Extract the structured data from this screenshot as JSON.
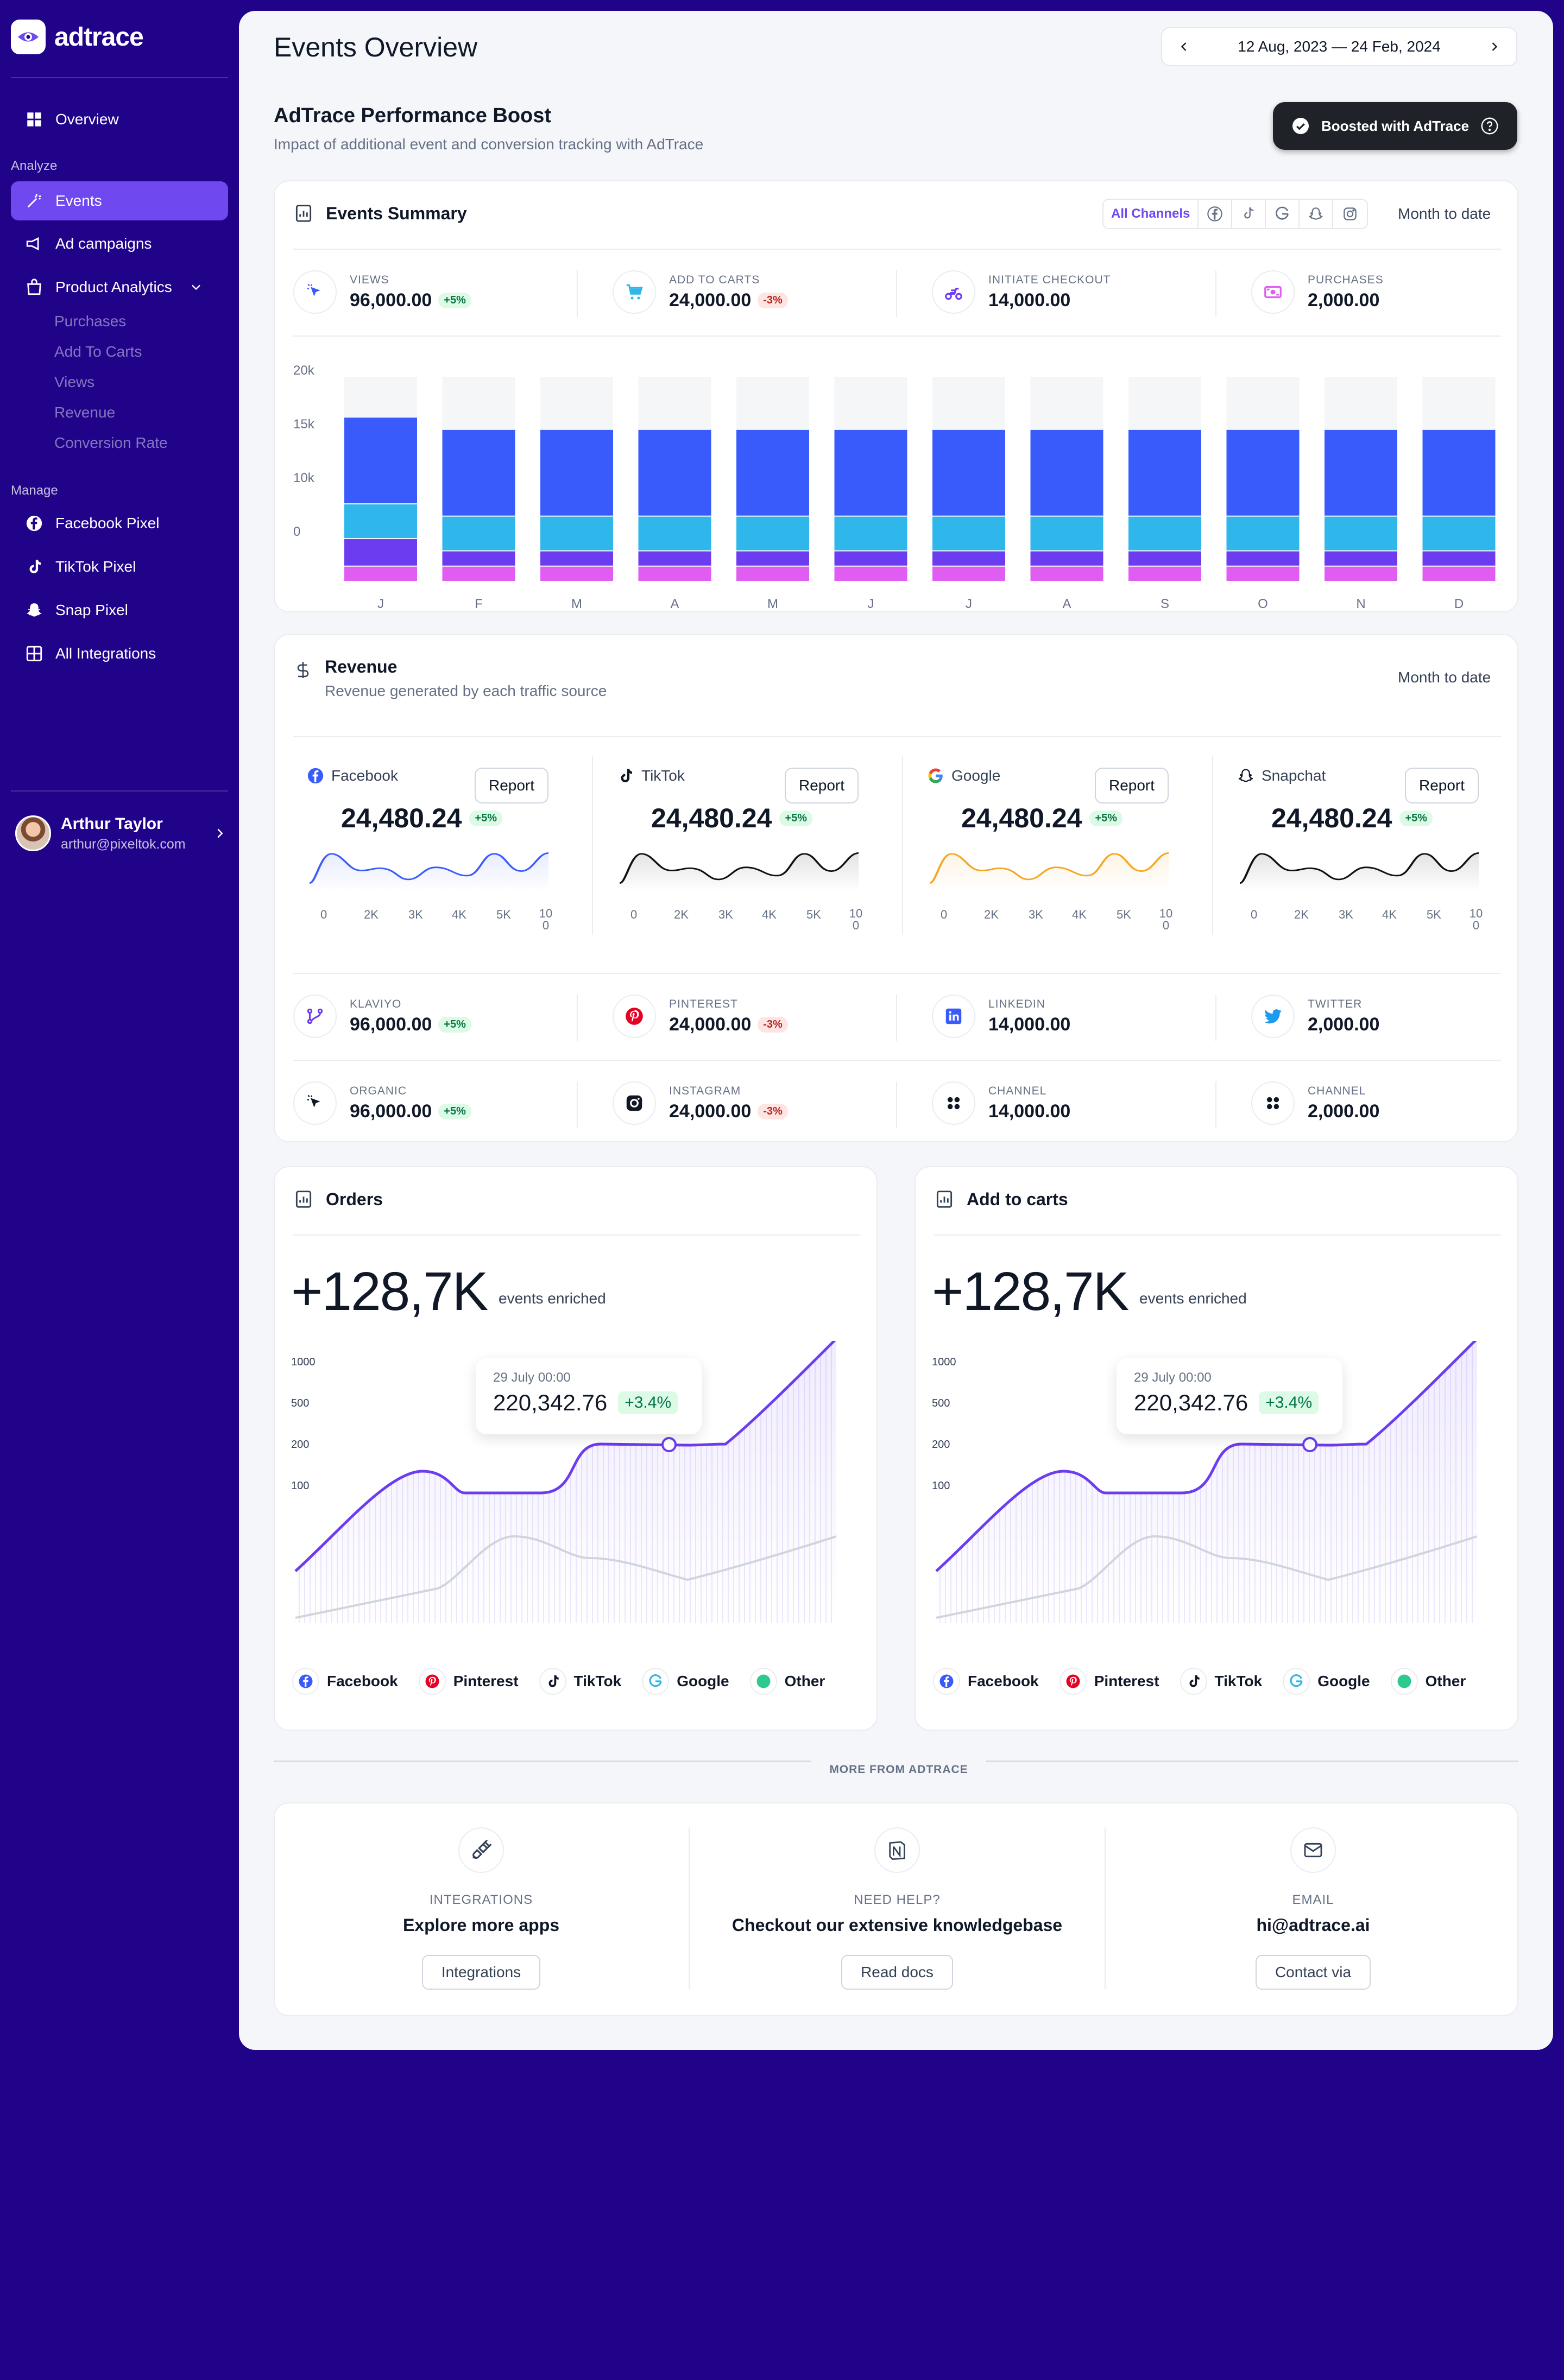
{
  "app": {
    "name": "adtrace"
  },
  "sidebar": {
    "overview": "Overview",
    "analyze_label": "Analyze",
    "events": "Events",
    "ad_campaigns": "Ad campaigns",
    "product_analytics": "Product Analytics",
    "sub_items": [
      "Purchases",
      "Add To Carts",
      "Views",
      "Revenue",
      "Conversion Rate"
    ],
    "manage_label": "Manage",
    "facebook_pixel": "Facebook Pixel",
    "tiktok_pixel": "TikTok Pixel",
    "snap_pixel": "Snap Pixel",
    "all_integrations": "All Integrations",
    "user": {
      "name": "Arthur Taylor",
      "email": "arthur@pixeltok.com"
    }
  },
  "header": {
    "title": "Events Overview",
    "date_range": "12 Aug, 2023 — 24 Feb, 2024"
  },
  "boost": {
    "title": "AdTrace Performance Boost",
    "subtitle": "Impact of additional event and conversion tracking with AdTrace",
    "button": "Boosted with AdTrace"
  },
  "events_summary": {
    "title": "Events Summary",
    "filter_all": "All Channels",
    "period": "Month to date",
    "stats": [
      {
        "label": "VIEWS",
        "value": "96,000.00",
        "change": "+5%"
      },
      {
        "label": "ADD TO CARTS",
        "value": "24,000.00",
        "change": "-3%"
      },
      {
        "label": "INITIATE CHECKOUT",
        "value": "14,000.00",
        "change": ""
      },
      {
        "label": "PURCHASES",
        "value": "2,000.00",
        "change": ""
      }
    ]
  },
  "chart_data": {
    "type": "bar",
    "stacked": true,
    "title": "Events Summary",
    "categories": [
      "J",
      "F",
      "M",
      "A",
      "M",
      "J",
      "J",
      "A",
      "S",
      "O",
      "N",
      "D"
    ],
    "yticks": [
      "20k",
      "15k",
      "10k",
      "0"
    ],
    "ylim": [
      0,
      20000
    ],
    "series": [
      {
        "name": "Purchases",
        "color": "#e05df2",
        "values": [
          1500,
          1500,
          1500,
          1500,
          1500,
          1500,
          1500,
          1500,
          1500,
          1500,
          1500,
          1500
        ]
      },
      {
        "name": "Initiate Checkout",
        "color": "#6b3cf0",
        "values": [
          2700,
          1500,
          1500,
          1500,
          1500,
          1500,
          1500,
          1500,
          1500,
          1500,
          1500,
          1500
        ]
      },
      {
        "name": "Add to Carts",
        "color": "#2fb6ea",
        "values": [
          3400,
          3400,
          3400,
          3400,
          3400,
          3400,
          3400,
          3400,
          3400,
          3400,
          3400,
          3400
        ]
      },
      {
        "name": "Views",
        "color": "#3a5bfb",
        "values": [
          8500,
          8500,
          8500,
          8500,
          8500,
          8500,
          8500,
          8500,
          8500,
          8500,
          8500,
          8500
        ]
      }
    ]
  },
  "revenue": {
    "title": "Revenue",
    "subtitle": "Revenue generated by each traffic source",
    "period": "Month to date",
    "report_label": "Report",
    "sources": [
      {
        "name": "Facebook",
        "value": "24,480.24",
        "change": "+5%",
        "color": "#3a5bfb"
      },
      {
        "name": "TikTok",
        "value": "24,480.24",
        "change": "+5%",
        "color": "#111111"
      },
      {
        "name": "Google",
        "value": "24,480.24",
        "change": "+5%",
        "color": "#f5a623"
      },
      {
        "name": "Snapchat",
        "value": "24,480.24",
        "change": "+5%",
        "color": "#111111"
      }
    ],
    "axis": [
      "0",
      "2K",
      "3K",
      "4K",
      "5K",
      "10 0"
    ],
    "channels": [
      {
        "label": "KLAVIYO",
        "value": "96,000.00",
        "change": "+5%"
      },
      {
        "label": "PINTEREST",
        "value": "24,000.00",
        "change": "-3%"
      },
      {
        "label": "LINKEDIN",
        "value": "14,000.00",
        "change": ""
      },
      {
        "label": "TWITTER",
        "value": "2,000.00",
        "change": ""
      },
      {
        "label": "ORGANIC",
        "value": "96,000.00",
        "change": "+5%"
      },
      {
        "label": "INSTAGRAM",
        "value": "24,000.00",
        "change": "-3%"
      },
      {
        "label": "CHANNEL",
        "value": "14,000.00",
        "change": ""
      },
      {
        "label": "CHANNEL",
        "value": "2,000.00",
        "change": ""
      }
    ]
  },
  "orders": {
    "title": "Orders",
    "total": "+128,7K",
    "caption": "events enriched",
    "yticks": [
      "1000",
      "500",
      "200",
      "100"
    ],
    "tooltip": {
      "date": "29 July 00:00",
      "value": "220,342.76",
      "change": "+3.4%"
    }
  },
  "add_to_carts": {
    "title": "Add to carts",
    "total": "+128,7K",
    "caption": "events enriched",
    "yticks": [
      "1000",
      "500",
      "200",
      "100"
    ],
    "tooltip": {
      "date": "29 July 00:00",
      "value": "220,342.76",
      "change": "+3.4%"
    }
  },
  "legend": [
    "Facebook",
    "Pinterest",
    "TikTok",
    "Google",
    "Other"
  ],
  "more": {
    "title": "MORE FROM ADTRACE",
    "items": [
      {
        "label": "INTEGRATIONS",
        "main": "Explore more apps",
        "button": "Integrations"
      },
      {
        "label": "NEED HELP?",
        "main": "Checkout our extensive knowledgebase",
        "button": "Read docs"
      },
      {
        "label": "EMAIL",
        "main": "hi@adtrace.ai",
        "button": "Contact via"
      }
    ]
  }
}
